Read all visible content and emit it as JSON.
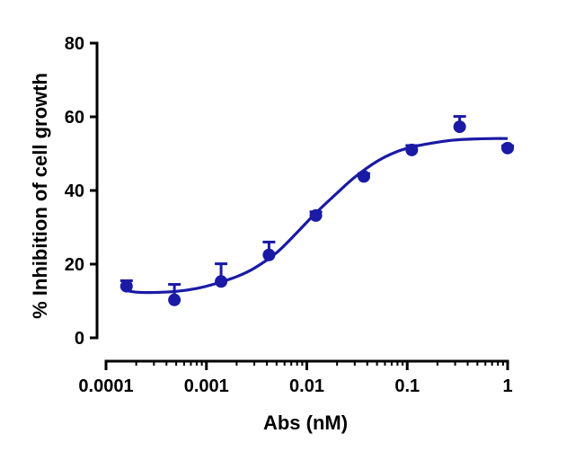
{
  "chart_data": {
    "type": "scatter",
    "xlabel": "Abs (nM)",
    "ylabel": "% Inhibition of cell growth",
    "x_scale": "log",
    "xlim": [
      0.0001,
      1
    ],
    "ylim": [
      0,
      80
    ],
    "x_ticks": [
      {
        "value": 0.0001,
        "label": "0.0001"
      },
      {
        "value": 0.001,
        "label": "0.001"
      },
      {
        "value": 0.01,
        "label": "0.01"
      },
      {
        "value": 0.1,
        "label": "0.1"
      },
      {
        "value": 1,
        "label": "1"
      }
    ],
    "y_ticks": [
      {
        "value": 0,
        "label": "0"
      },
      {
        "value": 20,
        "label": "20"
      },
      {
        "value": 40,
        "label": "40"
      },
      {
        "value": 60,
        "label": "60"
      },
      {
        "value": 80,
        "label": "80"
      }
    ],
    "grid": false,
    "color": "#1a1aa6",
    "points": [
      {
        "x": 0.00016,
        "y": 14.0,
        "err": 1.5
      },
      {
        "x": 0.00048,
        "y": 10.3,
        "err": 4.2
      },
      {
        "x": 0.0014,
        "y": 15.3,
        "err": 4.8
      },
      {
        "x": 0.0042,
        "y": 22.5,
        "err": 3.5
      },
      {
        "x": 0.0123,
        "y": 33.2,
        "err": 1.0
      },
      {
        "x": 0.037,
        "y": 43.8,
        "err": 0.8
      },
      {
        "x": 0.111,
        "y": 51.0,
        "err": 1.2
      },
      {
        "x": 0.333,
        "y": 57.3,
        "err": 2.8
      },
      {
        "x": 1.0,
        "y": 51.5,
        "err": 0.6
      }
    ],
    "fit_curve": [
      {
        "x": 0.00016,
        "y": 12.8
      },
      {
        "x": 0.0002,
        "y": 12.4
      },
      {
        "x": 0.0003,
        "y": 12.3
      },
      {
        "x": 0.0005,
        "y": 12.6
      },
      {
        "x": 0.0008,
        "y": 13.4
      },
      {
        "x": 0.0012,
        "y": 14.6
      },
      {
        "x": 0.002,
        "y": 16.6
      },
      {
        "x": 0.003,
        "y": 18.9
      },
      {
        "x": 0.005,
        "y": 23.1
      },
      {
        "x": 0.008,
        "y": 28.6
      },
      {
        "x": 0.012,
        "y": 33.6
      },
      {
        "x": 0.02,
        "y": 39.3
      },
      {
        "x": 0.03,
        "y": 43.6
      },
      {
        "x": 0.05,
        "y": 47.9
      },
      {
        "x": 0.08,
        "y": 50.6
      },
      {
        "x": 0.12,
        "y": 52.0
      },
      {
        "x": 0.2,
        "y": 53.1
      },
      {
        "x": 0.3,
        "y": 53.7
      },
      {
        "x": 0.5,
        "y": 54.0
      },
      {
        "x": 0.75,
        "y": 54.1
      },
      {
        "x": 1.0,
        "y": 54.1
      }
    ]
  }
}
